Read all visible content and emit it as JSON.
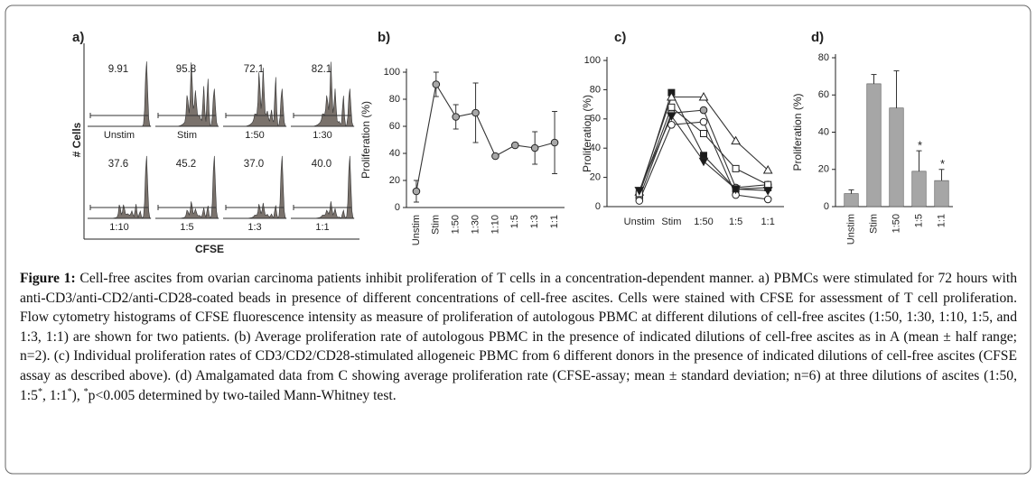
{
  "chart_data": [
    {
      "type": "histograms",
      "title": "a)",
      "ylabel": "# Cells",
      "xlabel": "CFSE",
      "categories": [
        "Unstim",
        "Stim",
        "1:50",
        "1:30",
        "1:10",
        "1:5",
        "1:3",
        "1:1"
      ],
      "values": [
        9.91,
        95.8,
        72.1,
        82.1,
        37.6,
        45.2,
        37.0,
        40.0
      ],
      "value_labels": [
        "9.91",
        "95.8",
        "72.1",
        "82.1",
        "37.6",
        "45.2",
        "37.0",
        "40.0"
      ],
      "color": "#7a726c"
    },
    {
      "type": "line",
      "title": "b)",
      "ylabel": "Proliferation (%)",
      "categories": [
        "Unstim",
        "Stim",
        "1:50",
        "1:30",
        "1:10",
        "1:5",
        "1:3",
        "1:1"
      ],
      "values": [
        12,
        91,
        67,
        70,
        38,
        46,
        44,
        48
      ],
      "errors": [
        8,
        9,
        9,
        22,
        1,
        1,
        12,
        23
      ],
      "marker": "circle",
      "color": "#a8a8a8",
      "line_color": "#333333",
      "ylim": [
        0,
        100
      ],
      "yticks": [
        0,
        20,
        40,
        60,
        80,
        100
      ],
      "xtick_rotation": 90
    },
    {
      "type": "line",
      "title": "c)",
      "ylabel": "Proliferation (%)",
      "categories": [
        "Unstim",
        "Stim",
        "1:50",
        "1:5",
        "1:1"
      ],
      "series": [
        {
          "marker": "square",
          "color": "#1a1a1a",
          "values": [
            8,
            78,
            35,
            12,
            13
          ]
        },
        {
          "marker": "triangle-up",
          "color": "#ffffff",
          "values": [
            10,
            75,
            75,
            45,
            25
          ]
        },
        {
          "marker": "circle",
          "color": "#a8a8a8",
          "values": [
            6,
            64,
            66,
            13,
            15
          ]
        },
        {
          "marker": "circle",
          "color": "#ffffff",
          "values": [
            4,
            56,
            58,
            8,
            5
          ]
        },
        {
          "marker": "square",
          "color": "#ffffff",
          "values": [
            9,
            68,
            50,
            26,
            15
          ]
        },
        {
          "marker": "triangle-down",
          "color": "#1a1a1a",
          "values": [
            11,
            62,
            31,
            12,
            11
          ]
        }
      ],
      "line_color": "#333333",
      "ylim": [
        0,
        100
      ],
      "yticks": [
        0,
        20,
        40,
        60,
        80,
        100
      ],
      "xtick_rotation": 0
    },
    {
      "type": "bar",
      "title": "d)",
      "ylabel": "Proliferation (%)",
      "categories": [
        "Unstim",
        "Stim",
        "1:50",
        "1:5",
        "1:1"
      ],
      "values": [
        7,
        66,
        53,
        19,
        14
      ],
      "errors": [
        2,
        5,
        20,
        11,
        6
      ],
      "annotations": [
        null,
        null,
        null,
        "*",
        "*"
      ],
      "color": "#a6a6a6",
      "ylim": [
        0,
        80
      ],
      "yticks": [
        0,
        20,
        40,
        60,
        80
      ],
      "xtick_rotation": 90
    }
  ],
  "caption": {
    "label": "Figure 1:",
    "segments": [
      {
        "text": " Cell-free ascites from ovarian carcinoma patients inhibit proliferation of T cells in a concentration-dependent manner. a) PBMCs were stimulated for 72 hours with anti-CD3/anti-CD2/anti-CD28-coated beads in presence of different concentrations of cell-free ascites. Cells were stained with CFSE for assessment of T cell proliferation. Flow cytometry histograms of CFSE fluorescence intensity as measure of proliferation of autologous PBMC at different dilutions of cell-free ascites (1:50, 1:30, 1:10, 1:5, and 1:3, 1:1) are shown for two patients. (b) Average proliferation rate of autologous PBMC in the presence of indicated dilutions of cell-free ascites as in A (mean ± half range; n=2). (c) Individual proliferation rates of CD3/CD2/CD28-stimulated allogeneic PBMC from 6 different donors in the presence of indicated dilutions of cell-free ascites (CFSE assay as described above). (d) Amalgamated data from C showing average proliferation rate (CFSE-assay; mean ± standard deviation; n=6) at three dilutions of ascites (1:50, 1:5"
      },
      {
        "sup": "*"
      },
      {
        "text": ", 1:1"
      },
      {
        "sup": "*"
      },
      {
        "text": "), "
      },
      {
        "sup": "*"
      },
      {
        "text": "p<0.005 determined by two-tailed Mann-Whitney test."
      }
    ]
  }
}
